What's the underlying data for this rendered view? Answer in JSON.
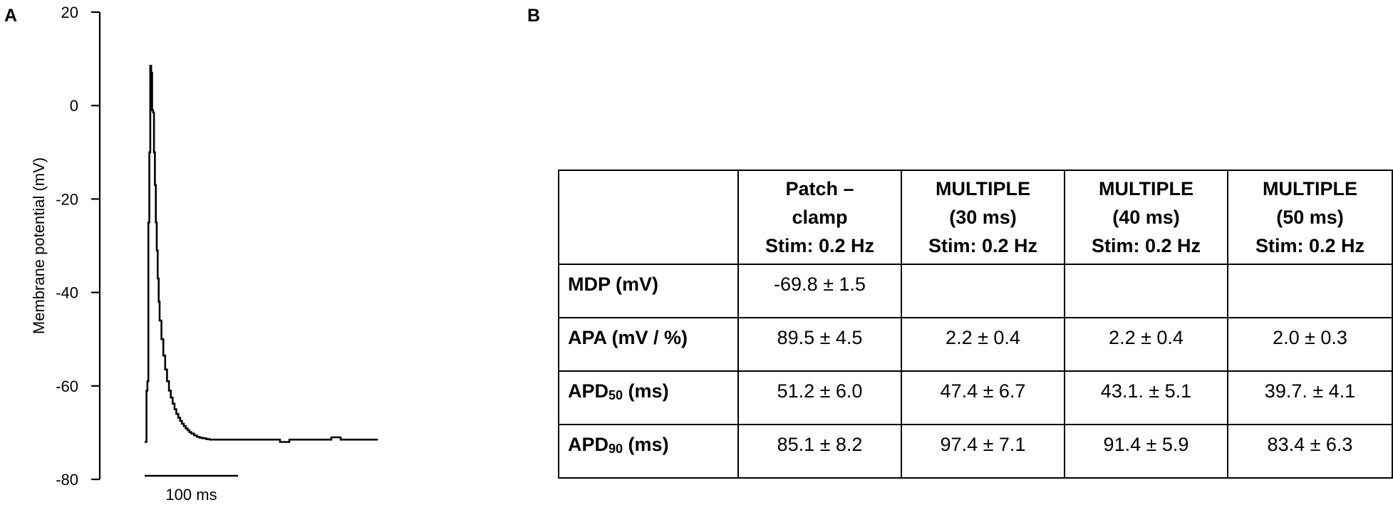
{
  "panels": {
    "a": "A",
    "b": "B"
  },
  "chart_data": {
    "type": "line",
    "ylabel": "Membrane potential (mV)",
    "ylim": [
      -80,
      20
    ],
    "y_ticks": [
      "20",
      "0",
      "-20",
      "-40",
      "-60",
      "-80"
    ],
    "scale_bar_label": "100 ms",
    "scale_bar_ms": 100,
    "series": [
      {
        "x": [
          0,
          1,
          2,
          3,
          4,
          5,
          6,
          7,
          8,
          9,
          10,
          11,
          12,
          13,
          14,
          15,
          16,
          18,
          20,
          22,
          24,
          26,
          28,
          30,
          32,
          34,
          36,
          38,
          40,
          42,
          44,
          46,
          48,
          50,
          53,
          56,
          59,
          62,
          66,
          70,
          75,
          80,
          86,
          92,
          100,
          108,
          118,
          130,
          145,
          150,
          155,
          160,
          180,
          200,
          205,
          210,
          215,
          245,
          250
        ],
        "y": [
          -72,
          -72,
          -61,
          -59,
          -25,
          -10,
          8.5,
          7,
          -1,
          -1.5,
          -10,
          -17,
          -25,
          -31,
          -37,
          -42,
          -46,
          -50,
          -53.5,
          -56.5,
          -59,
          -61,
          -62.5,
          -63.8,
          -65,
          -66,
          -66.8,
          -67.5,
          -68.1,
          -68.6,
          -69.1,
          -69.5,
          -69.9,
          -70.2,
          -70.6,
          -70.9,
          -71.1,
          -71.2,
          -71.4,
          -71.5,
          -71.5,
          -71.5,
          -71.5,
          -71.5,
          -71.5,
          -71.5,
          -71.5,
          -71.5,
          -72,
          -72,
          -71.5,
          -71.5,
          -71.5,
          -71,
          -71,
          -71.5,
          -71.5,
          -71.5,
          -71.5
        ]
      }
    ]
  },
  "table": {
    "headers": [
      "",
      [
        "Patch –",
        "clamp",
        "Stim: 0.2 Hz"
      ],
      [
        "MULTIPLE",
        "(30 ms)",
        "Stim: 0.2 Hz"
      ],
      [
        "MULTIPLE",
        "(40 ms)",
        "Stim: 0.2 Hz"
      ],
      [
        "MULTIPLE",
        "(50 ms)",
        "Stim: 0.2 Hz"
      ]
    ],
    "rows": [
      {
        "label": "MDP (mV)",
        "label_main": "MDP (mV)",
        "label_sub": "",
        "label_tail": "",
        "values": [
          "-69.8 ± 1.5",
          "",
          "",
          ""
        ]
      },
      {
        "label": "APA (mV / %)",
        "label_main": "APA (mV / %)",
        "label_sub": "",
        "label_tail": "",
        "values": [
          "89.5 ± 4.5",
          "2.2 ± 0.4",
          "2.2 ± 0.4",
          "2.0 ± 0.3"
        ]
      },
      {
        "label": "APD50 (ms)",
        "label_main": "APD",
        "label_sub": "50",
        "label_tail": " (ms)",
        "values": [
          "51.2 ± 6.0",
          "47.4 ± 6.7",
          "43.1. ± 5.1",
          "39.7. ± 4.1"
        ]
      },
      {
        "label": "APD90 (ms)",
        "label_main": "APD",
        "label_sub": "90",
        "label_tail": " (ms)",
        "values": [
          "85.1 ± 8.2",
          "97.4 ± 7.1",
          "91.4 ± 5.9",
          "83.4 ± 6.3"
        ]
      }
    ]
  }
}
